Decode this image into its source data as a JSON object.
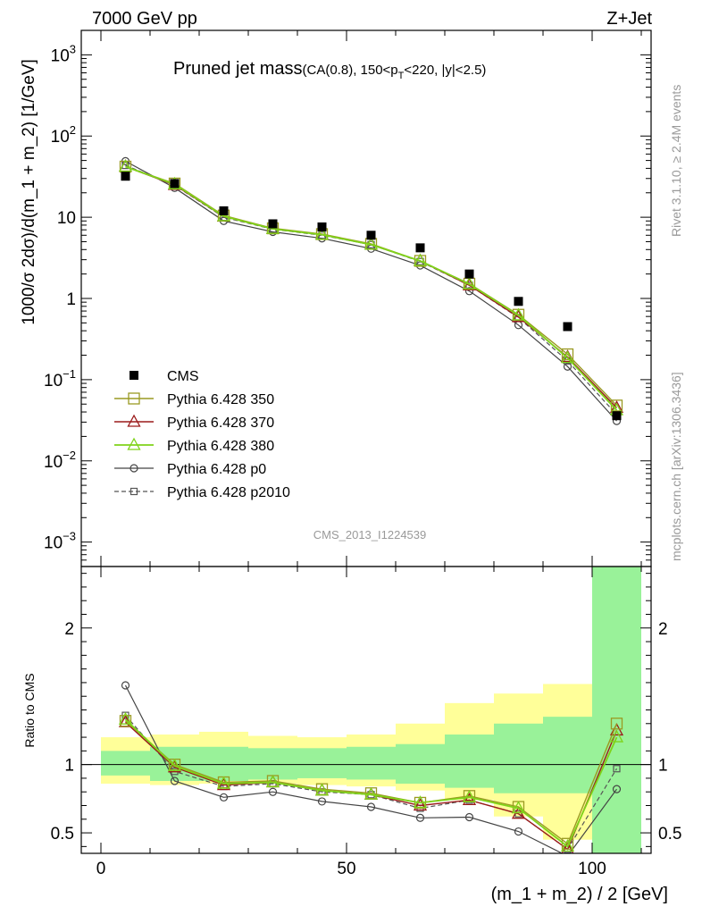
{
  "header": {
    "left_label": "7000 GeV pp",
    "right_label": "Z+Jet"
  },
  "side_labels": {
    "rivet": "Rivet 3.1.10, ≥ 2.4M events",
    "mcplots": "mcplots.cern.ch [arXiv:1306.3436]"
  },
  "analysis_id": "CMS_2013_I1224539",
  "colors": {
    "cms": "#000000",
    "py350": "#9a9a22",
    "py370": "#9b1b1b",
    "py380": "#7fd31a",
    "p0": "#444444",
    "p2010": "#555555",
    "band_inner": "#99f299",
    "band_outer": "#ffff99"
  },
  "chart_data": [
    {
      "type": "scatter",
      "title_main": "Pruned jet mass",
      "title_sub_1": "(CA(0.8), 150<p",
      "title_sub_sub": "T",
      "title_sub_2": "<220, |y|<2.5)",
      "ylabel": "1000/σ 2dσ)/d(m_1 + m_2) [1/GeV]",
      "yscale": "log",
      "ylim": [
        0.0005,
        2000
      ],
      "xlim": [
        -4,
        112
      ],
      "yticks": [
        {
          "v": 0.001,
          "m": "10",
          "e": "−3"
        },
        {
          "v": 0.01,
          "m": "10",
          "e": "−2"
        },
        {
          "v": 0.1,
          "m": "10",
          "e": "−1"
        },
        {
          "v": 1,
          "m": "1",
          "e": ""
        },
        {
          "v": 10,
          "m": "10",
          "e": ""
        },
        {
          "v": 100,
          "m": "10",
          "e": "2"
        },
        {
          "v": 1000,
          "m": "10",
          "e": "3"
        }
      ],
      "x": [
        5,
        15,
        25,
        35,
        45,
        55,
        65,
        75,
        85,
        95,
        105
      ],
      "series": [
        {
          "name": "CMS",
          "key": "cms",
          "values": [
            32,
            26,
            12,
            8.3,
            7.6,
            6.0,
            4.2,
            2.0,
            0.92,
            0.45,
            0.036
          ]
        },
        {
          "name": "Pythia 6.428 350",
          "key": "py350",
          "values": [
            42,
            26,
            10.5,
            7.3,
            6.2,
            4.7,
            2.9,
            1.52,
            0.63,
            0.205,
            0.048
          ]
        },
        {
          "name": "Pythia 6.428 370",
          "key": "py370",
          "values": [
            42,
            25,
            10.2,
            7.2,
            6.1,
            4.6,
            2.9,
            1.45,
            0.59,
            0.19,
            0.045
          ]
        },
        {
          "name": "Pythia 6.428 380",
          "key": "py380",
          "values": [
            42,
            25.5,
            10.3,
            7.2,
            6.1,
            4.6,
            2.9,
            1.5,
            0.62,
            0.185,
            0.042
          ]
        },
        {
          "name": "Pythia 6.428 p0",
          "key": "p0",
          "values": [
            49,
            23,
            9.0,
            6.6,
            5.5,
            4.1,
            2.55,
            1.23,
            0.47,
            0.145,
            0.031
          ]
        },
        {
          "name": "Pythia 6.428 p2010",
          "key": "p2010",
          "values": [
            43.5,
            24.8,
            10.0,
            7.1,
            6.0,
            4.6,
            2.85,
            1.45,
            0.58,
            0.17,
            0.037
          ]
        }
      ]
    },
    {
      "type": "scatter",
      "ylabel": "Ratio to CMS",
      "xlabel": "(m_1 + m_2) / 2 [GeV]",
      "ylim": [
        0.35,
        2.45
      ],
      "xlim": [
        -4,
        112
      ],
      "yticks": [
        0.5,
        1,
        2
      ],
      "xticks": [
        0,
        50,
        100
      ],
      "bins": [
        [
          0,
          10
        ],
        [
          10,
          20
        ],
        [
          20,
          30
        ],
        [
          30,
          40
        ],
        [
          40,
          50
        ],
        [
          50,
          60
        ],
        [
          60,
          70
        ],
        [
          70,
          80
        ],
        [
          80,
          90
        ],
        [
          90,
          100
        ],
        [
          100,
          110
        ]
      ],
      "band_inner": [
        [
          0.92,
          1.1
        ],
        [
          0.88,
          1.13
        ],
        [
          0.88,
          1.13
        ],
        [
          0.89,
          1.12
        ],
        [
          0.9,
          1.12
        ],
        [
          0.89,
          1.13
        ],
        [
          0.86,
          1.15
        ],
        [
          0.83,
          1.22
        ],
        [
          0.79,
          1.3
        ],
        [
          0.79,
          1.35
        ],
        [
          0.35,
          2.45
        ]
      ],
      "band_outer": [
        [
          0.86,
          1.2
        ],
        [
          0.85,
          1.22
        ],
        [
          0.86,
          1.24
        ],
        [
          0.86,
          1.21
        ],
        [
          0.85,
          1.2
        ],
        [
          0.84,
          1.22
        ],
        [
          0.81,
          1.3
        ],
        [
          0.74,
          1.45
        ],
        [
          0.62,
          1.52
        ],
        [
          0.45,
          1.59
        ],
        [
          0.35,
          2.45
        ]
      ],
      "x": [
        5,
        15,
        25,
        35,
        45,
        55,
        65,
        75,
        85,
        95,
        105
      ],
      "series": [
        {
          "name": "Pythia 6.428 350",
          "key": "py350",
          "values": [
            1.32,
            1.0,
            0.87,
            0.88,
            0.82,
            0.79,
            0.72,
            0.77,
            0.69,
            0.42,
            1.3
          ]
        },
        {
          "name": "Pythia 6.428 370",
          "key": "py370",
          "values": [
            1.31,
            0.98,
            0.85,
            0.87,
            0.81,
            0.78,
            0.7,
            0.74,
            0.64,
            0.38,
            1.25
          ]
        },
        {
          "name": "Pythia 6.428 380",
          "key": "py380",
          "values": [
            1.33,
            0.99,
            0.86,
            0.87,
            0.81,
            0.78,
            0.72,
            0.76,
            0.68,
            0.4,
            1.2
          ]
        },
        {
          "name": "Pythia 6.428 p0",
          "key": "p0",
          "values": [
            1.58,
            0.88,
            0.76,
            0.8,
            0.73,
            0.69,
            0.61,
            0.615,
            0.51,
            0.33,
            0.82
          ]
        },
        {
          "name": "Pythia 6.428 p2010",
          "key": "p2010",
          "values": [
            1.36,
            0.95,
            0.84,
            0.86,
            0.8,
            0.78,
            0.68,
            0.74,
            0.64,
            0.38,
            0.97
          ]
        }
      ]
    }
  ]
}
